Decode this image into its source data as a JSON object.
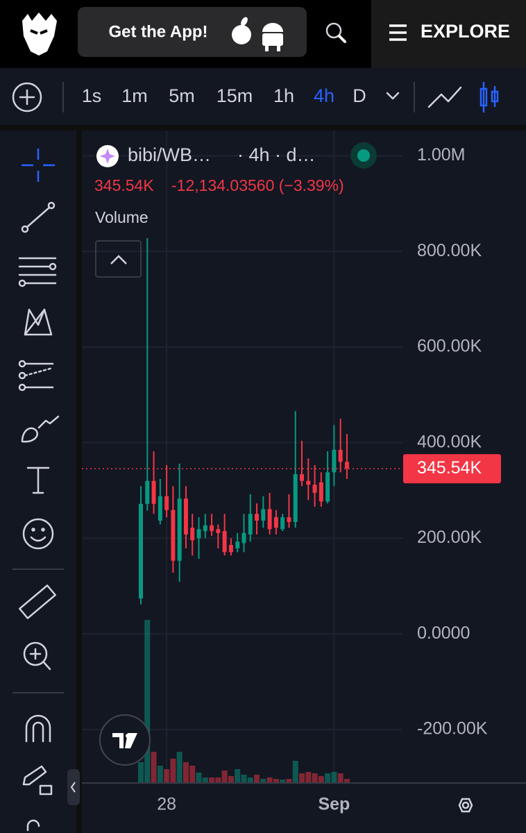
{
  "header": {
    "cta": "Get the App!",
    "menu": "EXPLORE"
  },
  "toolbar": {
    "intervals": [
      "1s",
      "1m",
      "5m",
      "15m",
      "1h",
      "4h",
      "D"
    ],
    "active_interval": 5
  },
  "chart_data": {
    "type": "candlestick",
    "symbol": "bibi/WB…",
    "interval_info": "· 4h · d…",
    "last_price": {
      "value": 345540,
      "label": "345.54K"
    },
    "change": "-12,134.03560 (−3.39%)",
    "volume_label": "Volume",
    "categories": [
      null,
      null,
      null,
      null,
      "28",
      null,
      null,
      null,
      null,
      null,
      null,
      null,
      null,
      null,
      null,
      null,
      null,
      null,
      null,
      null,
      null,
      null,
      null,
      null,
      null,
      null,
      null,
      null,
      null,
      null,
      "Sep",
      null,
      null
    ],
    "open": [
      74000,
      272000,
      320000,
      237000,
      288000,
      259000,
      153000,
      283000,
      222000,
      200000,
      215000,
      227000,
      219000,
      215000,
      186000,
      179000,
      190000,
      208000,
      251000,
      237000,
      261000,
      244000,
      219000,
      244000,
      234000,
      334000,
      320000,
      312000,
      317000,
      277000,
      338000,
      385000,
      360000
    ],
    "high": [
      309000,
      828000,
      382000,
      324000,
      353000,
      309000,
      356000,
      309000,
      251000,
      244000,
      251000,
      251000,
      229000,
      251000,
      200000,
      211000,
      251000,
      292000,
      273000,
      288000,
      295000,
      259000,
      251000,
      292000,
      466000,
      404000,
      367000,
      353000,
      338000,
      382000,
      437000,
      450000,
      418000
    ],
    "low": [
      62000,
      258000,
      251000,
      229000,
      244000,
      128000,
      109000,
      179000,
      164000,
      157000,
      200000,
      205000,
      179000,
      164000,
      164000,
      171000,
      171000,
      193000,
      208000,
      222000,
      208000,
      208000,
      215000,
      222000,
      222000,
      309000,
      280000,
      266000,
      266000,
      273000,
      309000,
      338000,
      324000
    ],
    "close": [
      272000,
      320000,
      272000,
      288000,
      259000,
      153000,
      283000,
      208000,
      196000,
      219000,
      227000,
      215000,
      211000,
      171000,
      171000,
      193000,
      211000,
      251000,
      237000,
      261000,
      219000,
      222000,
      244000,
      234000,
      334000,
      320000,
      312000,
      295000,
      277000,
      338000,
      385000,
      360000,
      346000
    ],
    "volume": [
      30,
      235,
      45,
      25,
      20,
      35,
      45,
      30,
      25,
      15,
      8,
      8,
      8,
      18,
      10,
      20,
      12,
      8,
      12,
      6,
      8,
      6,
      5,
      6,
      32,
      14,
      16,
      14,
      10,
      14,
      16,
      14,
      6
    ],
    "up_color": "#089981",
    "down_color": "#f23645",
    "ylim": [
      -312000,
      1053000
    ],
    "yticks": [
      {
        "value": -200000,
        "label": "-200.00K"
      },
      {
        "value": 0,
        "label": "0.0000"
      },
      {
        "value": 200000,
        "label": "200.00K"
      },
      {
        "value": 400000,
        "label": "400.00K"
      },
      {
        "value": 600000,
        "label": "600.00K"
      },
      {
        "value": 800000,
        "label": "800.00K"
      },
      {
        "value": 1000000,
        "label": "1.00M"
      }
    ],
    "grid": true
  }
}
